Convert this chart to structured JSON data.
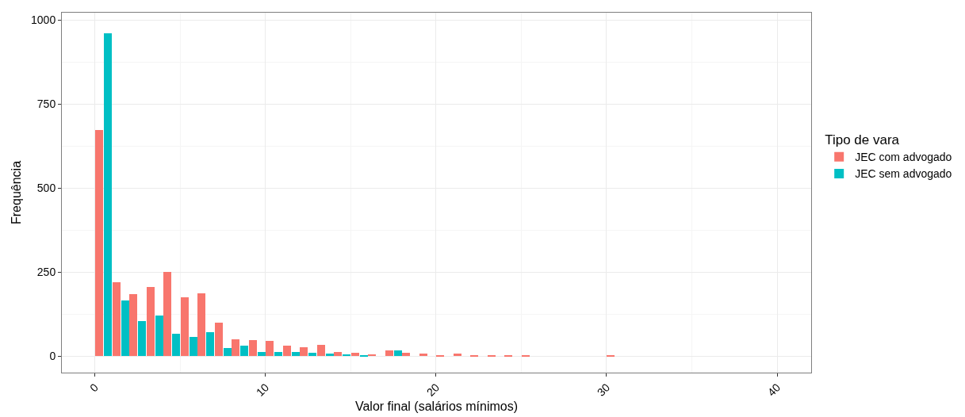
{
  "chart_data": {
    "type": "histogram",
    "xlabel": "Valor final (salários mínimos)",
    "ylabel": "Frequência",
    "legend_title": "Tipo de vara",
    "bins": [
      0,
      1,
      2,
      3,
      4,
      5,
      6,
      7,
      8,
      9,
      10,
      11,
      12,
      13,
      14,
      15,
      16,
      17,
      18,
      19,
      20,
      21,
      22,
      23,
      24,
      25,
      26,
      27,
      28,
      29,
      30,
      31
    ],
    "series": [
      {
        "name": "JEC com advogado",
        "color": "#f8766d",
        "values": [
          672,
          221,
          185,
          205,
          250,
          175,
          186,
          100,
          51,
          48,
          46,
          31,
          27,
          33,
          12,
          9,
          5,
          17,
          10,
          8,
          4,
          7,
          2,
          2,
          3,
          3,
          0,
          0,
          0,
          0,
          1
        ]
      },
      {
        "name": "JEC sem advogado",
        "color": "#00bfc4",
        "values": [
          960,
          166,
          105,
          120,
          66,
          57,
          71,
          24,
          31,
          12,
          13,
          13,
          9,
          8,
          5,
          4,
          0,
          17,
          0,
          0,
          0,
          0,
          0,
          0,
          0,
          0,
          0,
          0,
          0,
          0,
          0
        ]
      }
    ],
    "xlim": [
      -1.95,
      42
    ],
    "xticks": [
      0,
      10,
      20,
      30,
      40
    ],
    "ylim": [
      -49,
      1022
    ],
    "yticks": [
      0,
      250,
      500,
      750,
      1000
    ],
    "grid": true,
    "legend": "right"
  }
}
